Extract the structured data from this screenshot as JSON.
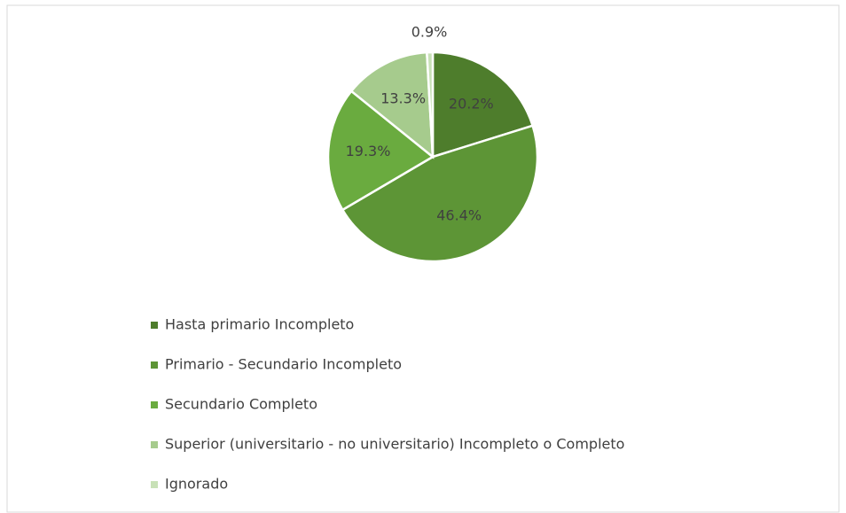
{
  "chart_data": {
    "type": "pie",
    "categories": [
      "Hasta primario Incompleto",
      "Primario - Secundario Incompleto",
      "Secundario Completo",
      "Superior (universitario - no universitario) Incompleto o Completo",
      "Ignorado"
    ],
    "values": [
      20.2,
      46.4,
      19.3,
      13.3,
      0.9
    ],
    "value_labels": [
      "20.2%",
      "46.4%",
      "19.3%",
      "13.3%",
      "0.9%"
    ],
    "colors": [
      "#4e7d2c",
      "#5d9536",
      "#6aab3f",
      "#a6cb8d",
      "#c8e1b7"
    ],
    "legend": "bottom"
  }
}
